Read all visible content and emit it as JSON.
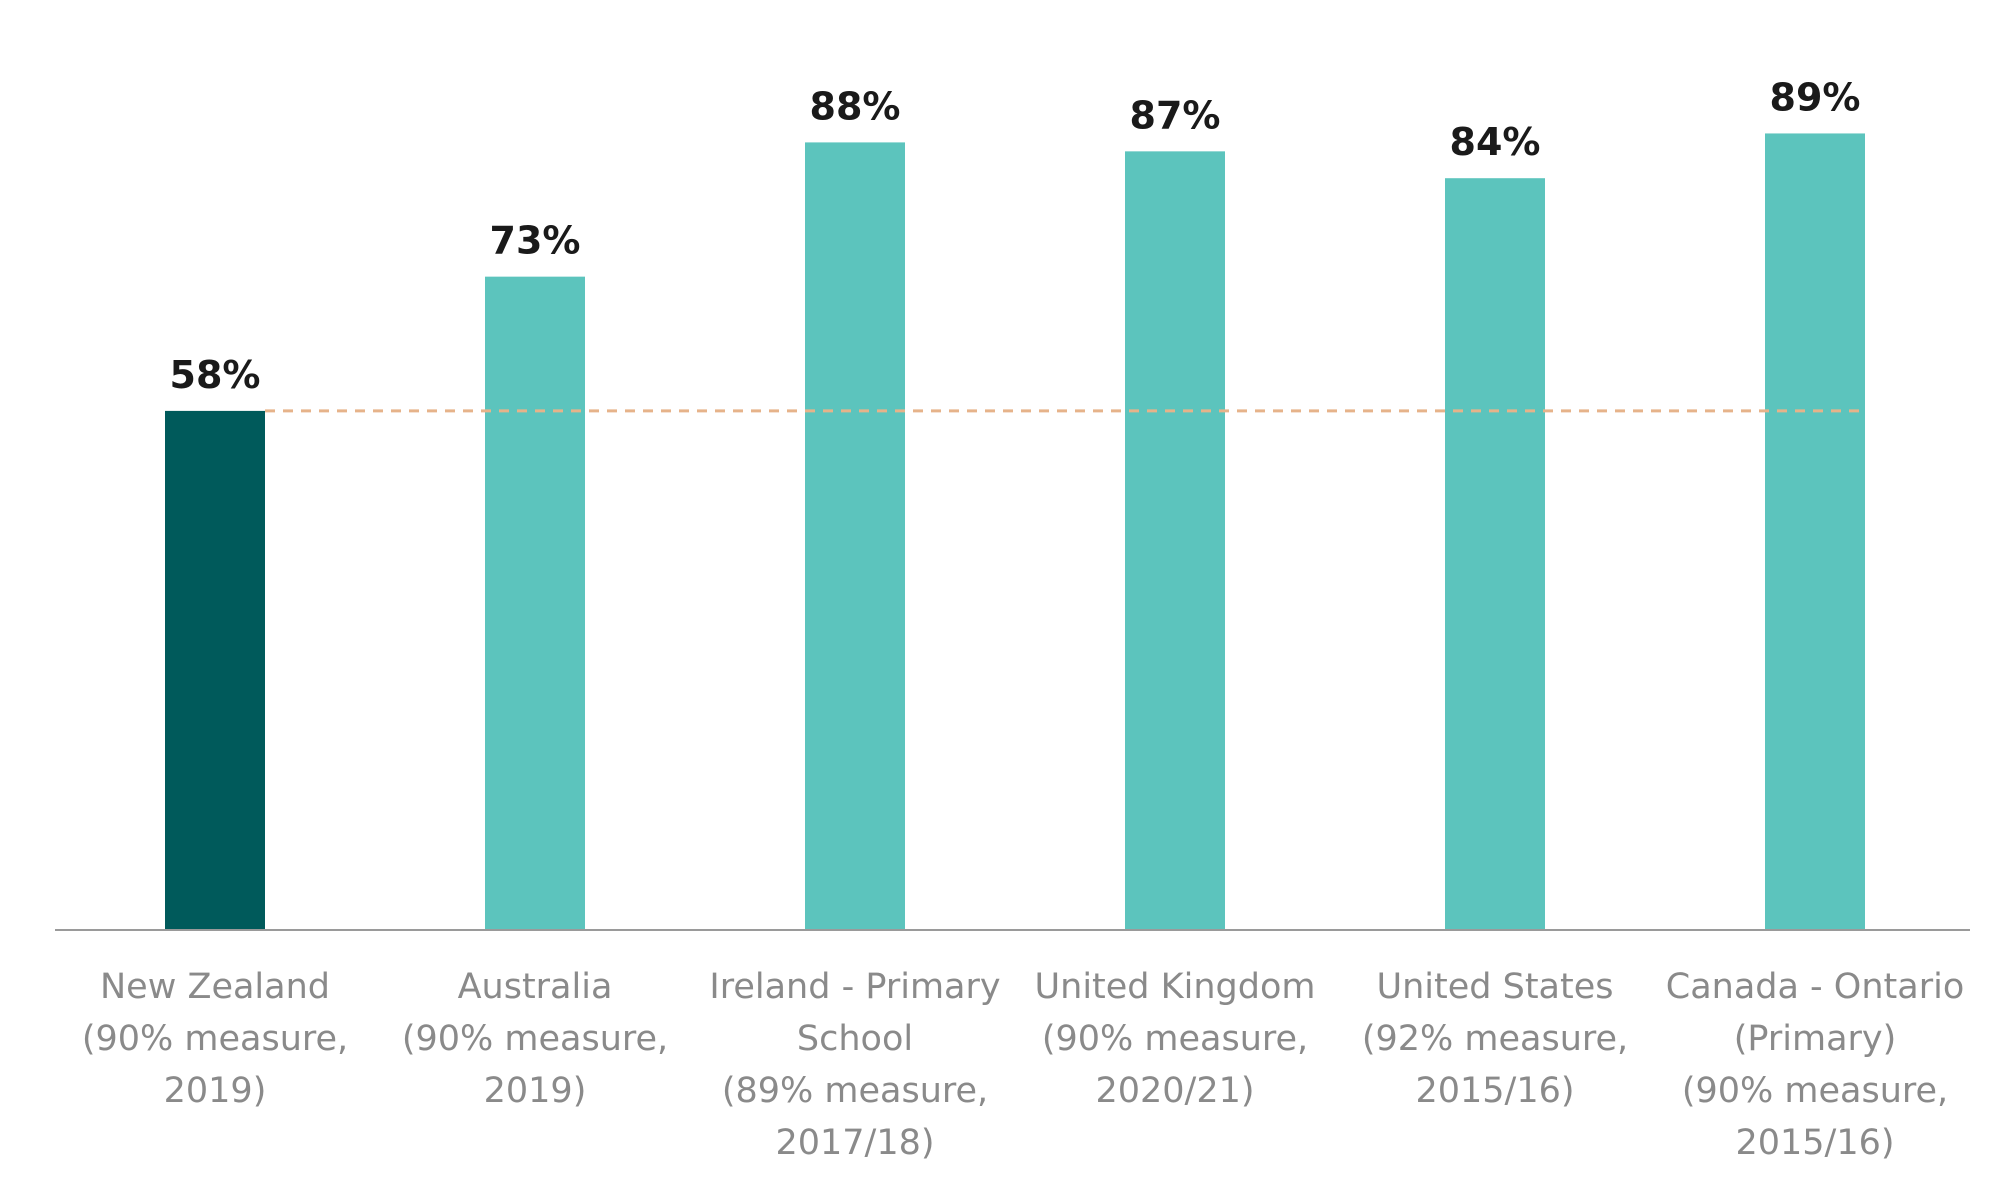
{
  "chart_data": {
    "type": "bar",
    "title": "",
    "xlabel": "",
    "ylabel": "",
    "ylim": [
      0,
      100
    ],
    "grid": false,
    "legend": "none",
    "categories": [
      [
        "New Zealand",
        "(90% measure,",
        "2019)"
      ],
      [
        "Australia",
        "(90% measure,",
        "2019)"
      ],
      [
        "Ireland - Primary",
        "School",
        "(89% measure,",
        "2017/18)"
      ],
      [
        "United Kingdom",
        "(90% measure,",
        "2020/21)"
      ],
      [
        "United States",
        "(92% measure,",
        "2015/16)"
      ],
      [
        "Canada - Ontario",
        "(Primary)",
        "(90% measure,",
        "2015/16)"
      ]
    ],
    "values": [
      58,
      73,
      88,
      87,
      84,
      89
    ],
    "value_labels": [
      "58%",
      "73%",
      "88%",
      "87%",
      "84%",
      "89%"
    ],
    "highlight_index": 0,
    "reference_line": {
      "value": 58,
      "style": "dashed",
      "color": "#e6b38a"
    },
    "colors": {
      "highlight": "#005a5b",
      "default": "#5cc4bd",
      "axis": "#9a9a9a",
      "value_label": "#1a1a1a",
      "category_label": "#8a8a8a"
    }
  }
}
